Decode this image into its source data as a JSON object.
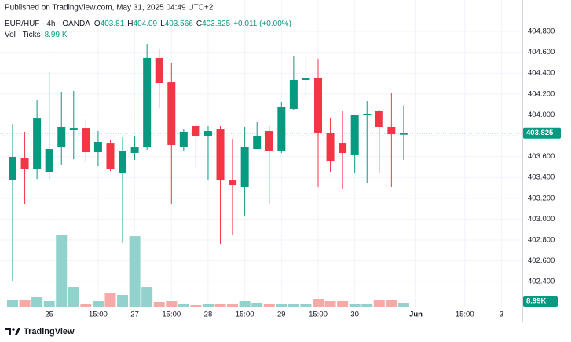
{
  "header": {
    "published": "Published on TradingView.com, May 31, 2025 04:49 UTC+2"
  },
  "chart_data": {
    "type": "candlestick",
    "symbol": "EUR/HUF · 4h · OANDA",
    "legend_keys": [
      "O",
      "H",
      "L",
      "C"
    ],
    "change_label": "+0.011 (+0.00%)",
    "volume_title": "Vol · Ticks",
    "volume_label": "8.99 K",
    "last_volume_label": "8.99K",
    "up_color": "#089981",
    "down_color": "#f23645",
    "volume_up_color": "#92d2cc",
    "volume_down_color": "#f7a9a7",
    "grid": true,
    "ylim": [
      402.161,
      405.101
    ],
    "vlim": [
      0,
      200000
    ],
    "yticks": [
      {
        "value": 402.4,
        "label": "402.400"
      },
      {
        "value": 402.6,
        "label": "402.600"
      },
      {
        "value": 402.8,
        "label": "402.800"
      },
      {
        "value": 403.0,
        "label": "403.000"
      },
      {
        "value": 403.2,
        "label": "403.200"
      },
      {
        "value": 403.4,
        "label": "403.400"
      },
      {
        "value": 403.6,
        "label": "403.600"
      },
      {
        "value": 403.8,
        "label": "403.800"
      },
      {
        "value": 404.0,
        "label": "404.000"
      },
      {
        "value": 404.2,
        "label": "404.200"
      },
      {
        "value": 404.4,
        "label": "404.400"
      },
      {
        "value": 404.6,
        "label": "404.600"
      },
      {
        "value": 404.8,
        "label": "404.800"
      }
    ],
    "xticks": [
      {
        "value": 3,
        "label": "25"
      },
      {
        "value": 7,
        "label": "15:00"
      },
      {
        "value": 10,
        "label": "27"
      },
      {
        "value": 13,
        "label": "15:00"
      },
      {
        "value": 16,
        "label": "28"
      },
      {
        "value": 19,
        "label": "15:00"
      },
      {
        "value": 22,
        "label": "29"
      },
      {
        "value": 25,
        "label": "15:00"
      },
      {
        "value": 28,
        "label": "30"
      },
      {
        "value": 33,
        "label": "Jun"
      },
      {
        "value": 37,
        "label": "15:00"
      },
      {
        "value": 40,
        "label": "3"
      }
    ],
    "candles": [
      {
        "open": 403.379,
        "high": 403.913,
        "low": 402.409,
        "close": 403.597,
        "volume": 16200
      },
      {
        "open": 403.589,
        "high": 403.838,
        "low": 403.146,
        "close": 403.484,
        "volume": 14400
      },
      {
        "open": 403.484,
        "high": 404.138,
        "low": 403.386,
        "close": 403.965,
        "volume": 23400
      },
      {
        "open": 403.454,
        "high": 404.409,
        "low": 403.379,
        "close": 403.672,
        "volume": 12600
      },
      {
        "open": 403.687,
        "high": 404.221,
        "low": 403.522,
        "close": 403.883,
        "volume": 165600
      },
      {
        "open": 403.853,
        "high": 404.229,
        "low": 403.574,
        "close": 403.875,
        "volume": 45000
      },
      {
        "open": 403.875,
        "high": 403.958,
        "low": 403.552,
        "close": 403.642,
        "volume": 7200
      },
      {
        "open": 403.642,
        "high": 403.845,
        "low": 403.507,
        "close": 403.74,
        "volume": 12600
      },
      {
        "open": 403.732,
        "high": 403.762,
        "low": 403.462,
        "close": 403.477,
        "volume": 30600
      },
      {
        "open": 403.439,
        "high": 403.785,
        "low": 402.77,
        "close": 403.65,
        "volume": 27000
      },
      {
        "open": 403.635,
        "high": 403.8,
        "low": 403.567,
        "close": 403.687,
        "volume": 162000
      },
      {
        "open": 403.687,
        "high": 404.68,
        "low": 403.665,
        "close": 404.545,
        "volume": 45000
      },
      {
        "open": 404.545,
        "high": 404.627,
        "low": 404.063,
        "close": 404.304,
        "volume": 10800
      },
      {
        "open": 404.311,
        "high": 404.499,
        "low": 403.146,
        "close": 403.71,
        "volume": 12600
      },
      {
        "open": 403.695,
        "high": 403.86,
        "low": 403.657,
        "close": 403.838,
        "volume": 5400
      },
      {
        "open": 403.898,
        "high": 403.913,
        "low": 403.499,
        "close": 403.8,
        "volume": 3600
      },
      {
        "open": 403.793,
        "high": 403.898,
        "low": 403.371,
        "close": 403.845,
        "volume": 5400
      },
      {
        "open": 403.86,
        "high": 403.898,
        "low": 402.762,
        "close": 403.371,
        "volume": 7200
      },
      {
        "open": 403.371,
        "high": 403.77,
        "low": 402.845,
        "close": 403.326,
        "volume": 7200
      },
      {
        "open": 403.304,
        "high": 403.883,
        "low": 403.025,
        "close": 403.695,
        "volume": 12600
      },
      {
        "open": 403.672,
        "high": 403.935,
        "low": 403.672,
        "close": 403.8,
        "volume": 9000
      },
      {
        "open": 403.845,
        "high": 403.898,
        "low": 403.146,
        "close": 403.65,
        "volume": 5400
      },
      {
        "open": 403.65,
        "high": 404.123,
        "low": 403.635,
        "close": 404.071,
        "volume": 5400
      },
      {
        "open": 404.056,
        "high": 404.56,
        "low": 404.048,
        "close": 404.334,
        "volume": 5400
      },
      {
        "open": 404.334,
        "high": 404.552,
        "low": 404.153,
        "close": 404.349,
        "volume": 7200
      },
      {
        "open": 404.349,
        "high": 404.537,
        "low": 403.311,
        "close": 403.823,
        "volume": 18000
      },
      {
        "open": 403.823,
        "high": 403.973,
        "low": 403.454,
        "close": 403.559,
        "volume": 12600
      },
      {
        "open": 403.732,
        "high": 404.041,
        "low": 403.289,
        "close": 403.635,
        "volume": 12600
      },
      {
        "open": 403.62,
        "high": 404.003,
        "low": 403.447,
        "close": 404.003,
        "volume": 5400
      },
      {
        "open": 403.996,
        "high": 404.131,
        "low": 403.349,
        "close": 404.011,
        "volume": 7200
      },
      {
        "open": 404.041,
        "high": 404.048,
        "low": 403.447,
        "close": 403.883,
        "volume": 14400
      },
      {
        "open": 403.883,
        "high": 404.206,
        "low": 403.311,
        "close": 403.815,
        "volume": 16200
      },
      {
        "open": 403.81,
        "high": 404.09,
        "low": 403.566,
        "close": 403.825,
        "volume": 8990
      }
    ]
  },
  "footer": {
    "brand": "TradingView"
  }
}
